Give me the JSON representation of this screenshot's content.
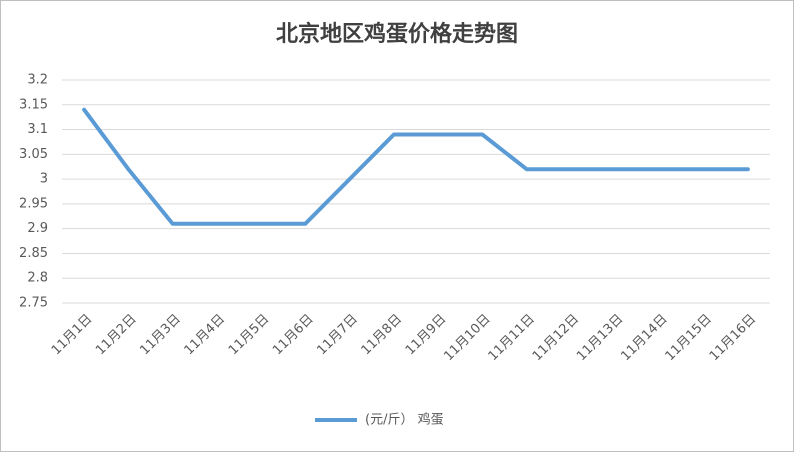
{
  "chart_data": {
    "type": "line",
    "title": "北京地区鸡蛋价格走势图",
    "categories": [
      "11月1日",
      "11月2日",
      "11月3日",
      "11月4日",
      "11月5日",
      "11月6日",
      "11月7日",
      "11月8日",
      "11月9日",
      "11月10日",
      "11月11日",
      "11月12日",
      "11月13日",
      "11月14日",
      "11月15日",
      "11月16日"
    ],
    "series": [
      {
        "name": "(元/斤） 鸡蛋",
        "color": "#5b9bd5",
        "values": [
          3.14,
          3.02,
          2.91,
          2.91,
          2.91,
          2.91,
          3.0,
          3.09,
          3.09,
          3.09,
          3.02,
          3.02,
          3.02,
          3.02,
          3.02,
          3.02
        ]
      }
    ],
    "ylim": [
      2.75,
      3.2
    ],
    "yticks": [
      2.75,
      2.8,
      2.85,
      2.9,
      2.95,
      3,
      3.05,
      3.1,
      3.15,
      3.2
    ],
    "grid": true,
    "legend": "bottom"
  }
}
